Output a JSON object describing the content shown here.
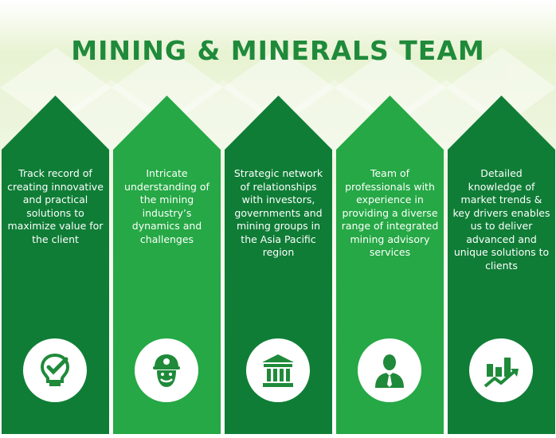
{
  "title": "MINING & MINERALS TEAM",
  "colors": {
    "title": "#1f8a3a",
    "card_dark": "#0f7d36",
    "card_light": "#25a845",
    "background_tint": "#e6f2cf"
  },
  "cards": [
    {
      "text": "Track record of creating innovative and practical solutions to maximize value for the client",
      "icon": "lightbulb-check-icon"
    },
    {
      "text": "Intricate understanding of the mining industry’s dynamics and challenges",
      "icon": "miner-icon"
    },
    {
      "text": "Strategic network of relationships with investors, governments and mining groups in the Asia Pacific region",
      "icon": "bank-building-icon"
    },
    {
      "text": "Team of professionals with experience in providing a diverse range of integrated mining advisory services",
      "icon": "professional-person-icon"
    },
    {
      "text": "Detailed knowledge of market trends & key drivers enables us to deliver advanced and unique solutions to clients",
      "icon": "growth-chart-icon"
    }
  ]
}
